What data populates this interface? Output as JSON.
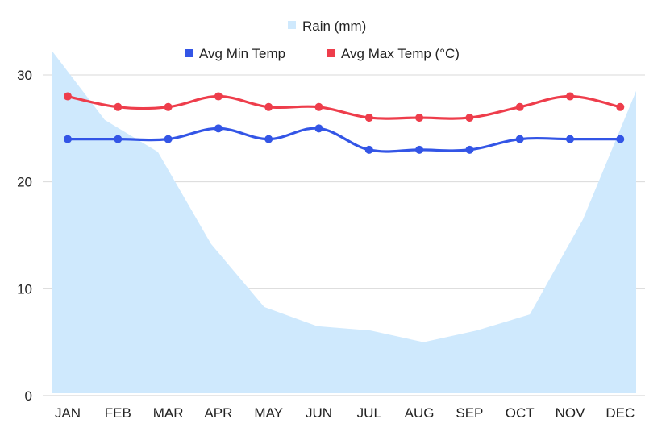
{
  "chart_data": {
    "type": "line",
    "categories": [
      "JAN",
      "FEB",
      "MAR",
      "APR",
      "MAY",
      "JUN",
      "JUL",
      "AUG",
      "SEP",
      "OCT",
      "NOV",
      "DEC"
    ],
    "series": [
      {
        "name": "Rain (mm)",
        "kind": "area",
        "color": "#cfe9fd",
        "values": [
          32.3,
          25.8,
          22.8,
          14.2,
          8.3,
          6.5,
          6.1,
          5.0,
          6.1,
          7.6,
          16.5,
          28.5
        ]
      },
      {
        "name": "Avg Min Temp",
        "kind": "line",
        "color": "#3355e6",
        "values": [
          24,
          24,
          24,
          25,
          24,
          25,
          23,
          23,
          23,
          24,
          24,
          24
        ]
      },
      {
        "name": "Avg Max Temp (°C)",
        "kind": "line",
        "color": "#ee3d4b",
        "values": [
          28,
          27,
          27,
          28,
          27,
          27,
          26,
          26,
          26,
          27,
          28,
          27
        ]
      }
    ],
    "yticks": [
      "0",
      "10",
      "20",
      "30"
    ],
    "ylim": [
      0,
      30
    ],
    "grid": true,
    "legend": "top-center",
    "title": "",
    "xlabel": "",
    "ylabel": ""
  }
}
